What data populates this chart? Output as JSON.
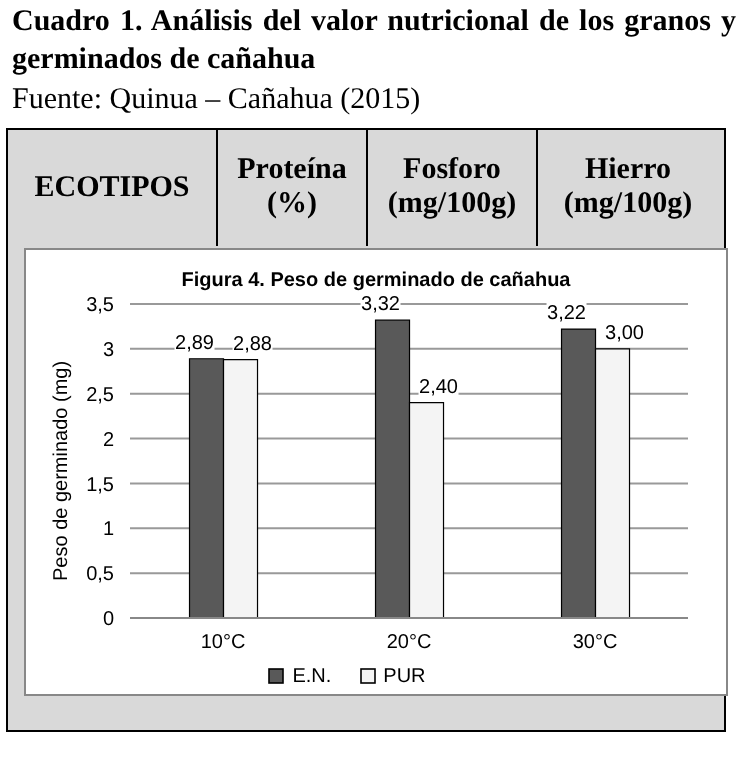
{
  "chart_data": {
    "type": "bar",
    "title": "Cuadro 1. Análisis del valor nutricional de los granos y  germinados de cañahua",
    "subtitle": "Fuente: Quinua – Cañahua (2015)",
    "annotations": [
      "ECOTIPOS",
      "Proteína (%)",
      "Fosforo (mg/100g)",
      "Hierro (mg/100g)",
      "Figura 4. Peso de germinado de cañahua"
    ],
    "categories": [
      "10°C",
      "20°C",
      "30°C"
    ],
    "series": [
      {
        "name": "E.N.",
        "color": "#595959",
        "values": [
          2.89,
          3.32,
          3.22
        ],
        "value_labels": [
          "2,89",
          "3,32",
          "3,22"
        ]
      },
      {
        "name": "PUR",
        "color": "#f4f4f4",
        "values": [
          2.88,
          2.4,
          3.0
        ],
        "value_labels": [
          "2,88",
          "2,40",
          "3,00"
        ]
      }
    ],
    "ylabel": "Peso de germinado (mg)",
    "ylim": [
      0,
      3.5
    ],
    "yticks": [
      {
        "value": 0,
        "label": "0"
      },
      {
        "value": 0.5,
        "label": "0,5"
      },
      {
        "value": 1,
        "label": "1"
      },
      {
        "value": 1.5,
        "label": "1,5"
      },
      {
        "value": 2,
        "label": "2"
      },
      {
        "value": 2.5,
        "label": "2,5"
      },
      {
        "value": 3,
        "label": "3"
      },
      {
        "value": 3.5,
        "label": "3,5"
      }
    ],
    "grid": "y",
    "legend": "bottom"
  }
}
